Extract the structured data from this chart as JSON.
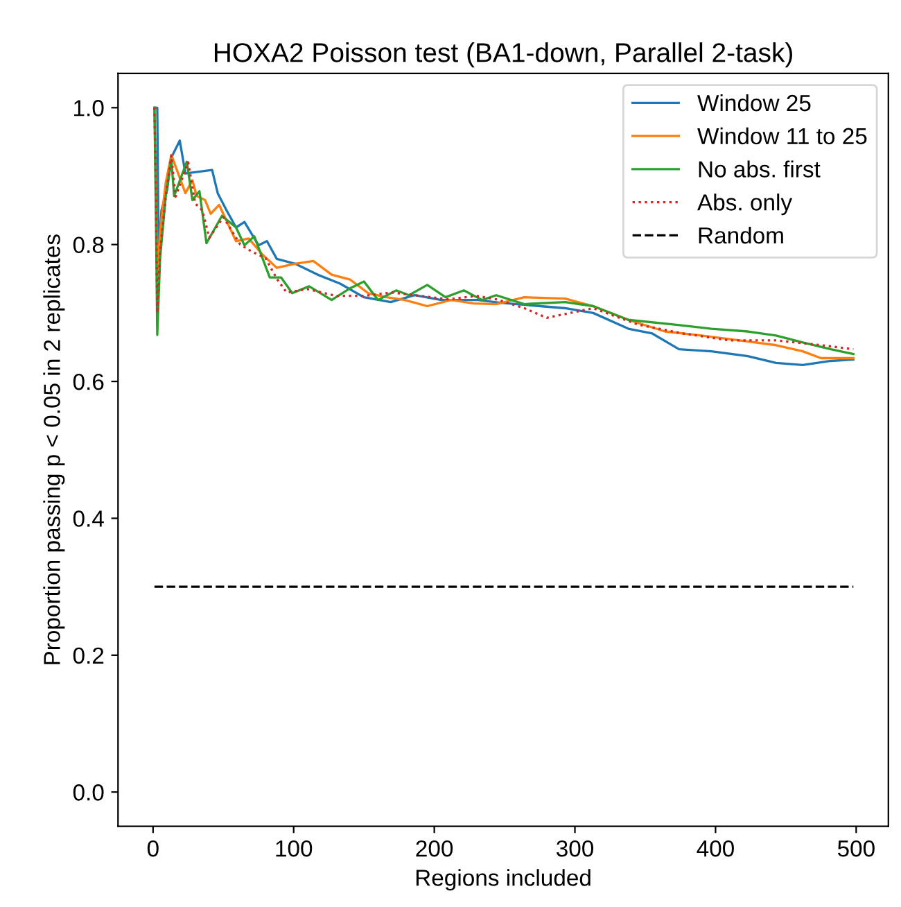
{
  "chart_data": {
    "type": "line",
    "title": "HOXA2 Poisson test (BA1-down, Parallel 2-task)",
    "xlabel": "Regions included",
    "ylabel": "Proportion passing p < 0.05 in 2 replicates",
    "xlim": [
      -24.9,
      522.9
    ],
    "ylim": [
      -0.05,
      1.05
    ],
    "xticks": [
      0,
      100,
      200,
      300,
      400,
      500
    ],
    "yticks": [
      {
        "value": 0.0,
        "label": "0.0"
      },
      {
        "value": 0.2,
        "label": "0.2"
      },
      {
        "value": 0.4,
        "label": "0.4"
      },
      {
        "value": 0.6,
        "label": "0.6"
      },
      {
        "value": 0.8,
        "label": "0.8"
      },
      {
        "value": 1.0,
        "label": "1.0"
      }
    ],
    "grid": false,
    "legend": "top right",
    "series": [
      {
        "name": "Window 25",
        "color": "#1f77b4",
        "line_style": "solid",
        "x": [
          1,
          3,
          4,
          6,
          10,
          13,
          19,
          23,
          42,
          46,
          52,
          59,
          65,
          75,
          81,
          88,
          101,
          117,
          133,
          150,
          169,
          186,
          205,
          231,
          247,
          293,
          313,
          338,
          355,
          374,
          397,
          423,
          443,
          462,
          482,
          498
        ],
        "values": [
          1.0,
          1.0,
          0.78,
          0.85,
          0.88,
          0.927,
          0.952,
          0.904,
          0.909,
          0.875,
          0.851,
          0.825,
          0.833,
          0.799,
          0.805,
          0.779,
          0.772,
          0.756,
          0.743,
          0.723,
          0.716,
          0.726,
          0.719,
          0.719,
          0.715,
          0.707,
          0.7,
          0.677,
          0.67,
          0.647,
          0.644,
          0.637,
          0.627,
          0.624,
          0.63,
          0.632
        ]
      },
      {
        "name": "Window 11 to 25",
        "color": "#ff7f0e",
        "line_style": "solid",
        "x": [
          1,
          2,
          3,
          5,
          9,
          13,
          23,
          28,
          31,
          37,
          41,
          47,
          59,
          68,
          78,
          88,
          101,
          114,
          127,
          140,
          153,
          166,
          179,
          195,
          212,
          228,
          244,
          264,
          293,
          313,
          338,
          364,
          390,
          417,
          443,
          462,
          475,
          498
        ],
        "values": [
          1.0,
          0.9,
          0.75,
          0.82,
          0.89,
          0.931,
          0.875,
          0.894,
          0.871,
          0.865,
          0.845,
          0.858,
          0.805,
          0.809,
          0.785,
          0.766,
          0.772,
          0.776,
          0.756,
          0.749,
          0.729,
          0.723,
          0.719,
          0.71,
          0.719,
          0.714,
          0.713,
          0.723,
          0.721,
          0.71,
          0.69,
          0.673,
          0.667,
          0.66,
          0.653,
          0.644,
          0.634,
          0.634
        ]
      },
      {
        "name": "No abs. first",
        "color": "#2ca02c",
        "line_style": "solid",
        "x": [
          1,
          2,
          3,
          5,
          9,
          13,
          15,
          24,
          28,
          33,
          38,
          49,
          59,
          65,
          72,
          83,
          91,
          99,
          111,
          127,
          140,
          150,
          160,
          173,
          182,
          195,
          208,
          221,
          234,
          244,
          264,
          293,
          313,
          338,
          371,
          397,
          423,
          443,
          462,
          482,
          498
        ],
        "values": [
          1.0,
          0.85,
          0.668,
          0.78,
          0.87,
          0.924,
          0.871,
          0.921,
          0.865,
          0.878,
          0.802,
          0.842,
          0.825,
          0.799,
          0.812,
          0.752,
          0.752,
          0.729,
          0.739,
          0.719,
          0.736,
          0.746,
          0.719,
          0.733,
          0.726,
          0.741,
          0.723,
          0.733,
          0.719,
          0.726,
          0.713,
          0.716,
          0.71,
          0.69,
          0.683,
          0.677,
          0.673,
          0.667,
          0.657,
          0.647,
          0.64
        ]
      },
      {
        "name": "Abs. only",
        "color": "#d62728",
        "line_style": "dotted",
        "x": [
          1,
          2,
          3,
          5,
          9,
          13,
          16,
          25,
          30,
          35,
          40,
          50,
          62,
          70,
          80,
          88,
          95,
          110,
          130,
          150,
          170,
          190,
          210,
          230,
          244,
          264,
          280,
          313,
          345,
          377,
          410,
          443,
          475,
          498
        ],
        "values": [
          1.0,
          0.88,
          0.7,
          0.79,
          0.87,
          0.93,
          0.87,
          0.92,
          0.86,
          0.85,
          0.81,
          0.84,
          0.8,
          0.79,
          0.78,
          0.75,
          0.73,
          0.735,
          0.725,
          0.725,
          0.73,
          0.725,
          0.72,
          0.725,
          0.72,
          0.707,
          0.693,
          0.707,
          0.683,
          0.67,
          0.66,
          0.66,
          0.653,
          0.647
        ]
      },
      {
        "name": "Random",
        "color": "#000000",
        "line_style": "dashed",
        "x": [
          1,
          498
        ],
        "values": [
          0.3,
          0.3
        ]
      }
    ]
  }
}
